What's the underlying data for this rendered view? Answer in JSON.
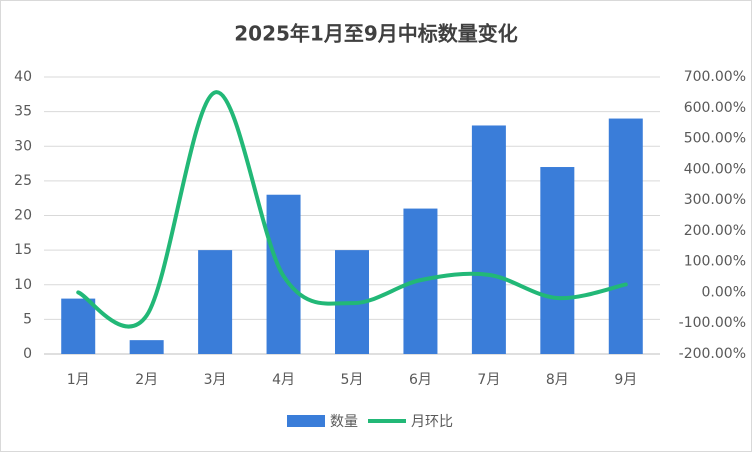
{
  "chart_data": {
    "type": "bar-line",
    "title": "2025年1月至9月中标数量变化",
    "categories": [
      "1月",
      "2月",
      "3月",
      "4月",
      "5月",
      "6月",
      "7月",
      "8月",
      "9月"
    ],
    "series": [
      {
        "name": "数量",
        "type": "bar",
        "color": "#3a7dd9",
        "values": [
          8,
          2,
          15,
          23,
          15,
          21,
          33,
          27,
          34
        ]
      },
      {
        "name": "月环比",
        "type": "line",
        "axis": "y2",
        "color": "#22b877",
        "smooth": true,
        "values": [
          0,
          -75,
          650,
          53.3,
          -34.8,
          40,
          57.1,
          -18.2,
          25.9
        ]
      }
    ],
    "ylim": [
      0,
      40
    ],
    "yticks": [
      0,
      5,
      10,
      15,
      20,
      25,
      30,
      35,
      40
    ],
    "y2lim": [
      -200,
      700
    ],
    "y2ticks": [
      {
        "value": -200,
        "label": "-200.00%"
      },
      {
        "value": -100,
        "label": "-100.00%"
      },
      {
        "value": 0,
        "label": "0.00%"
      },
      {
        "value": 100,
        "label": "100.00%"
      },
      {
        "value": 200,
        "label": "200.00%"
      },
      {
        "value": 300,
        "label": "300.00%"
      },
      {
        "value": 400,
        "label": "400.00%"
      },
      {
        "value": 500,
        "label": "500.00%"
      },
      {
        "value": 600,
        "label": "600.00%"
      },
      {
        "value": 700,
        "label": "700.00%"
      }
    ],
    "grid": true,
    "legend": "bottom"
  }
}
